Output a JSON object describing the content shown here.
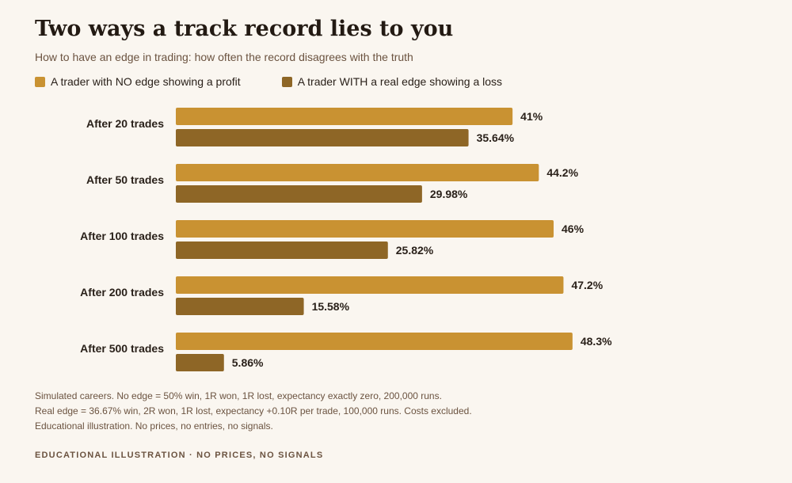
{
  "title": "Two ways a track record lies to you",
  "subtitle": "How to have an edge in trading: how often the record disagrees with the truth",
  "colors": {
    "no_edge": "#c99232",
    "real_edge": "#8e6626",
    "background": "#faf6f0",
    "label_text": "#2a211a"
  },
  "legend": [
    {
      "label": "A trader with NO edge showing a profit"
    },
    {
      "label": "A trader WITH a real edge showing a loss"
    }
  ],
  "chart_data": {
    "type": "bar",
    "orientation": "horizontal",
    "categories": [
      "After 20 trades",
      "After 50 trades",
      "After 100 trades",
      "After 200 trades",
      "After 500 trades"
    ],
    "series": [
      {
        "name": "A trader with NO edge showing a profit",
        "values": [
          41,
          44.2,
          46,
          47.2,
          48.3
        ],
        "labels": [
          "41%",
          "44.2%",
          "46%",
          "47.2%",
          "48.3%"
        ]
      },
      {
        "name": "A trader WITH a real edge showing a loss",
        "values": [
          35.64,
          29.98,
          25.82,
          15.58,
          5.86
        ],
        "labels": [
          "35.64%",
          "29.98%",
          "25.82%",
          "15.58%",
          "5.86%"
        ]
      }
    ],
    "xlim": [
      0,
      50
    ],
    "grid": false,
    "legend_position": "top-left"
  },
  "notes": [
    "Simulated careers. No edge = 50% win, 1R won, 1R lost, expectancy exactly zero, 200,000 runs.",
    "Real edge = 36.67% win, 2R won, 1R lost, expectancy +0.10R per trade, 100,000 runs. Costs excluded.",
    "Educational illustration. No prices, no entries, no signals."
  ],
  "footer": "EDUCATIONAL ILLUSTRATION · NO PRICES, NO SIGNALS"
}
